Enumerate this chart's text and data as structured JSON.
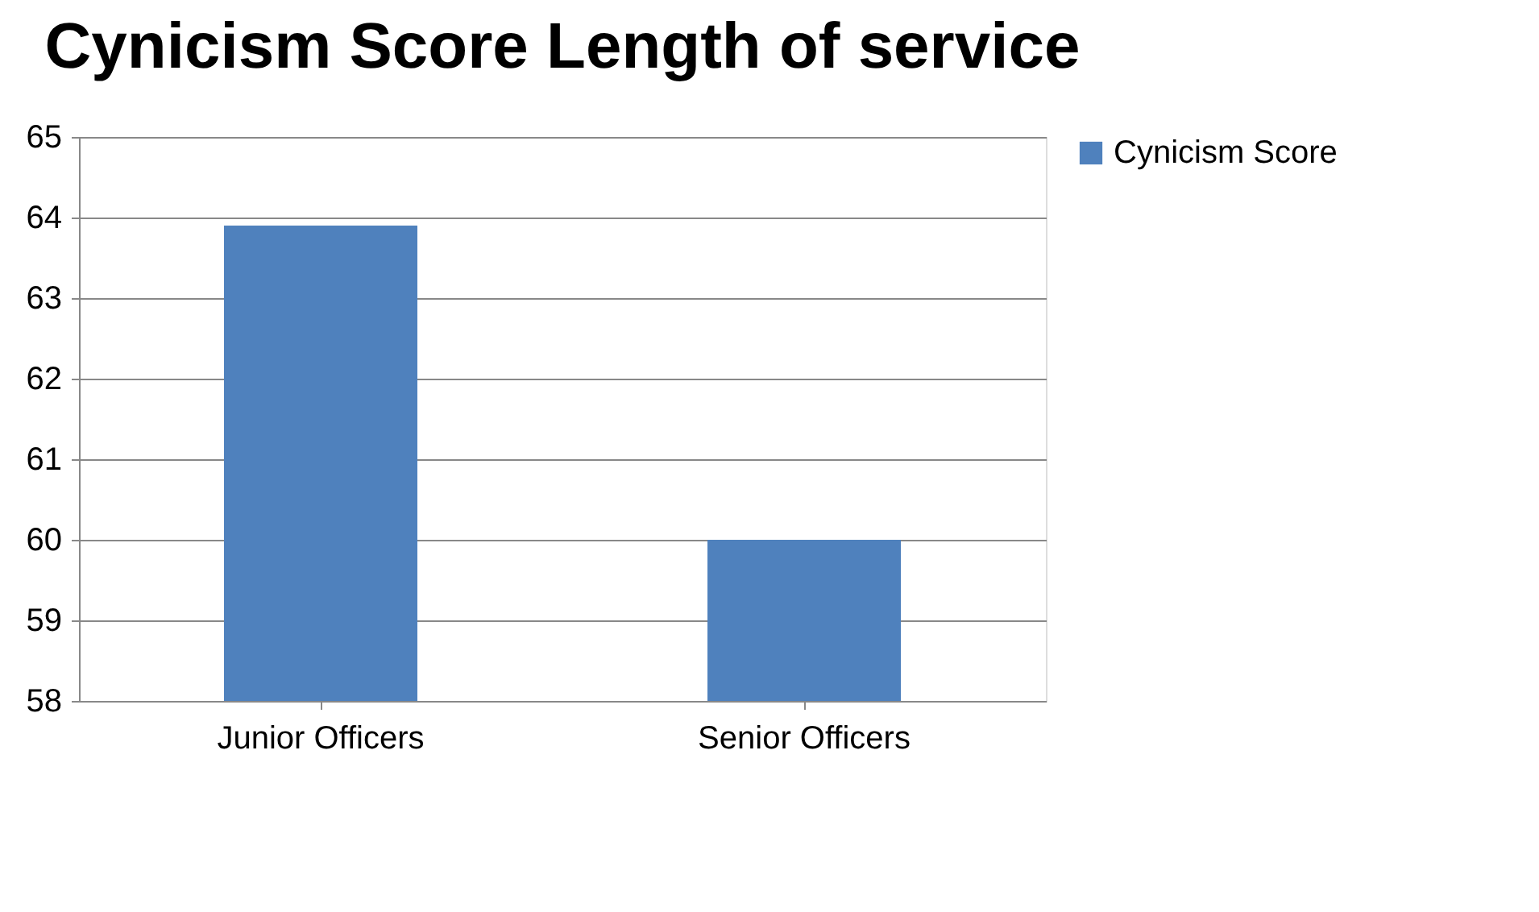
{
  "chart_data": {
    "type": "bar",
    "title": "Cynicism Score Length of service",
    "categories": [
      "Junior Officers",
      "Senior Officers"
    ],
    "series": [
      {
        "name": "Cynicism Score",
        "color": "#4f81bd",
        "values": [
          63.9,
          60.0
        ]
      }
    ],
    "ylim": [
      58,
      65
    ],
    "yticks": [
      58,
      59,
      60,
      61,
      62,
      63,
      64,
      65
    ],
    "grid": "y",
    "legend": "right"
  }
}
